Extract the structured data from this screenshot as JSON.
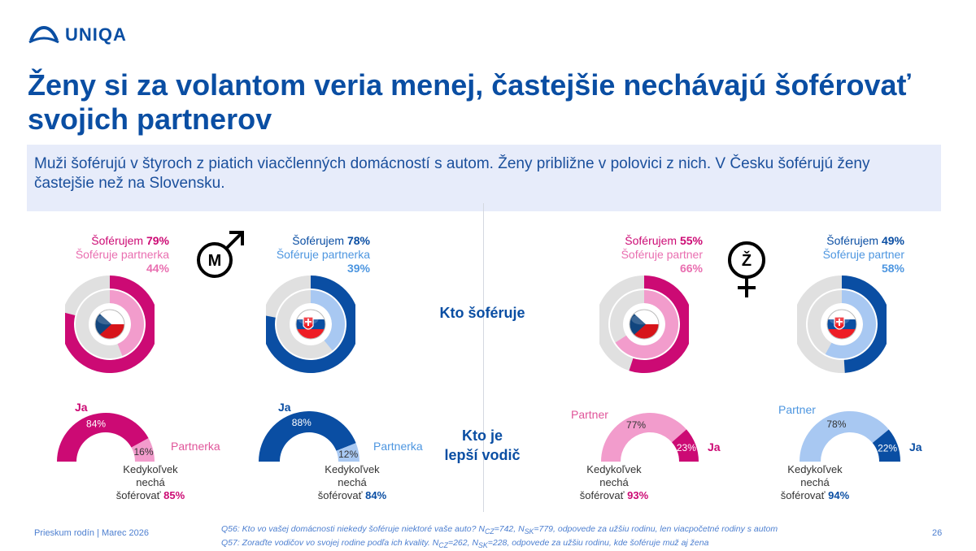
{
  "brand": {
    "name": "UNIQA",
    "color": "#0a4ea3"
  },
  "title": "Ženy si za volantom veria menej, častejšie nechávajú šoférovať svojich partnerov",
  "subtitle": "Muži šoférujú v štyroch z piatich viacčlenných domácností s autom. Ženy približne v polovici z nich. V Česku šoférujú ženy častejšie než na Slovensku.",
  "section_labels": {
    "who_drives": "Kto šoféruje",
    "better_driver_1": "Kto je",
    "better_driver_2": "lepší vodič"
  },
  "symbols": {
    "male_letter": "M",
    "female_letter": "Ž",
    "male_icon": "male-symbol",
    "female_icon": "female-symbol"
  },
  "colors": {
    "cz_main": "#cc0a74",
    "cz_light": "#f29ccc",
    "sk_main": "#0a4ea3",
    "sk_light": "#a8c8f2",
    "grey": "#e0e0e0"
  },
  "panels": [
    {
      "id": "men-cz",
      "flag": "cz-flag",
      "drive_label": "Šoférujem",
      "drive_value": "79%",
      "partner_label": "Šoféruje partnerka",
      "partner_value": "44%",
      "ja_label": "Ja",
      "ja_value": "84%",
      "partner_short": "Partnerka",
      "partner_pct": "16%",
      "let_line1": "Kedykoľvek",
      "let_line2": "nechá",
      "let_line3": "šoférovať",
      "let_value": "85%"
    },
    {
      "id": "men-sk",
      "flag": "sk-flag",
      "drive_label": "Šoférujem",
      "drive_value": "78%",
      "partner_label": "Šoféruje partnerka",
      "partner_value": "39%",
      "ja_label": "Ja",
      "ja_value": "88%",
      "partner_short": "Partnerka",
      "partner_pct": "12%",
      "let_line1": "Kedykoľvek",
      "let_line2": "nechá",
      "let_line3": "šoférovať",
      "let_value": "84%"
    },
    {
      "id": "women-cz",
      "flag": "cz-flag",
      "drive_label": "Šoférujem",
      "drive_value": "55%",
      "partner_label": "Šoféruje partner",
      "partner_value": "66%",
      "ja_label": "Ja",
      "ja_value": "23%",
      "partner_short": "Partner",
      "partner_pct": "77%",
      "let_line1": "Kedykoľvek",
      "let_line2": "nechá",
      "let_line3": "šoférovať",
      "let_value": "93%"
    },
    {
      "id": "women-sk",
      "flag": "sk-flag",
      "drive_label": "Šoférujem",
      "drive_value": "49%",
      "partner_label": "Šoféruje partner",
      "partner_value": "58%",
      "ja_label": "Ja",
      "ja_value": "22%",
      "partner_short": "Partner",
      "partner_pct": "78%",
      "let_line1": "Kedykoľvek",
      "let_line2": "nechá",
      "let_line3": "šoférovať",
      "let_value": "94%"
    }
  ],
  "chart_data": [
    {
      "type": "pie",
      "subtype": "nested-donut",
      "section": "Kto šoféruje",
      "group": "men",
      "country": "CZ",
      "series": [
        {
          "name": "Šoférujem",
          "values": [
            79
          ]
        },
        {
          "name": "Šoféruje partnerka",
          "values": [
            44
          ]
        }
      ]
    },
    {
      "type": "pie",
      "subtype": "nested-donut",
      "section": "Kto šoféruje",
      "group": "men",
      "country": "SK",
      "series": [
        {
          "name": "Šoférujem",
          "values": [
            78
          ]
        },
        {
          "name": "Šoféruje partnerka",
          "values": [
            39
          ]
        }
      ]
    },
    {
      "type": "pie",
      "subtype": "nested-donut",
      "section": "Kto šoféruje",
      "group": "women",
      "country": "CZ",
      "series": [
        {
          "name": "Šoférujem",
          "values": [
            55
          ]
        },
        {
          "name": "Šoféruje partner",
          "values": [
            66
          ]
        }
      ]
    },
    {
      "type": "pie",
      "subtype": "nested-donut",
      "section": "Kto šoféruje",
      "group": "women",
      "country": "SK",
      "series": [
        {
          "name": "Šoférujem",
          "values": [
            49
          ]
        },
        {
          "name": "Šoféruje partner",
          "values": [
            58
          ]
        }
      ]
    },
    {
      "type": "pie",
      "subtype": "half-donut",
      "section": "Kto je lepší vodič",
      "group": "men",
      "country": "CZ",
      "categories": [
        "Ja",
        "Partnerka"
      ],
      "values": [
        84,
        16
      ],
      "annotation": {
        "label": "Kedykoľvek nechá šoférovať",
        "value": 85
      }
    },
    {
      "type": "pie",
      "subtype": "half-donut",
      "section": "Kto je lepší vodič",
      "group": "men",
      "country": "SK",
      "categories": [
        "Ja",
        "Partnerka"
      ],
      "values": [
        88,
        12
      ],
      "annotation": {
        "label": "Kedykoľvek nechá šoférovať",
        "value": 84
      }
    },
    {
      "type": "pie",
      "subtype": "half-donut",
      "section": "Kto je lepší vodič",
      "group": "women",
      "country": "CZ",
      "categories": [
        "Partner",
        "Ja"
      ],
      "values": [
        77,
        23
      ],
      "annotation": {
        "label": "Kedykoľvek nechá šoférovať",
        "value": 93
      }
    },
    {
      "type": "pie",
      "subtype": "half-donut",
      "section": "Kto je lepší vodič",
      "group": "women",
      "country": "SK",
      "categories": [
        "Partner",
        "Ja"
      ],
      "values": [
        78,
        22
      ],
      "annotation": {
        "label": "Kedykoľvek nechá šoférovať",
        "value": 94
      }
    }
  ],
  "footer": {
    "left": "Prieskum rodín | Marec 2026",
    "page": "26",
    "q56_a": "Q56: Kto vo vašej domácnosti niekedy šoféruje niektoré vaše auto? N",
    "q56_s1": "CZ",
    "q56_b": "=742, N",
    "q56_s2": "SK",
    "q56_c": "=779, odpovede za užšiu rodinu, len viacpočetné rodiny s autom",
    "q57_a": "Q57: Zoraďte vodičov vo svojej rodine podľa ich kvality. N",
    "q57_s1": "CZ",
    "q57_b": "=262, N",
    "q57_s2": "SK",
    "q57_c": "=228, odpovede za užšiu rodinu, kde šoféruje muž aj žena"
  }
}
